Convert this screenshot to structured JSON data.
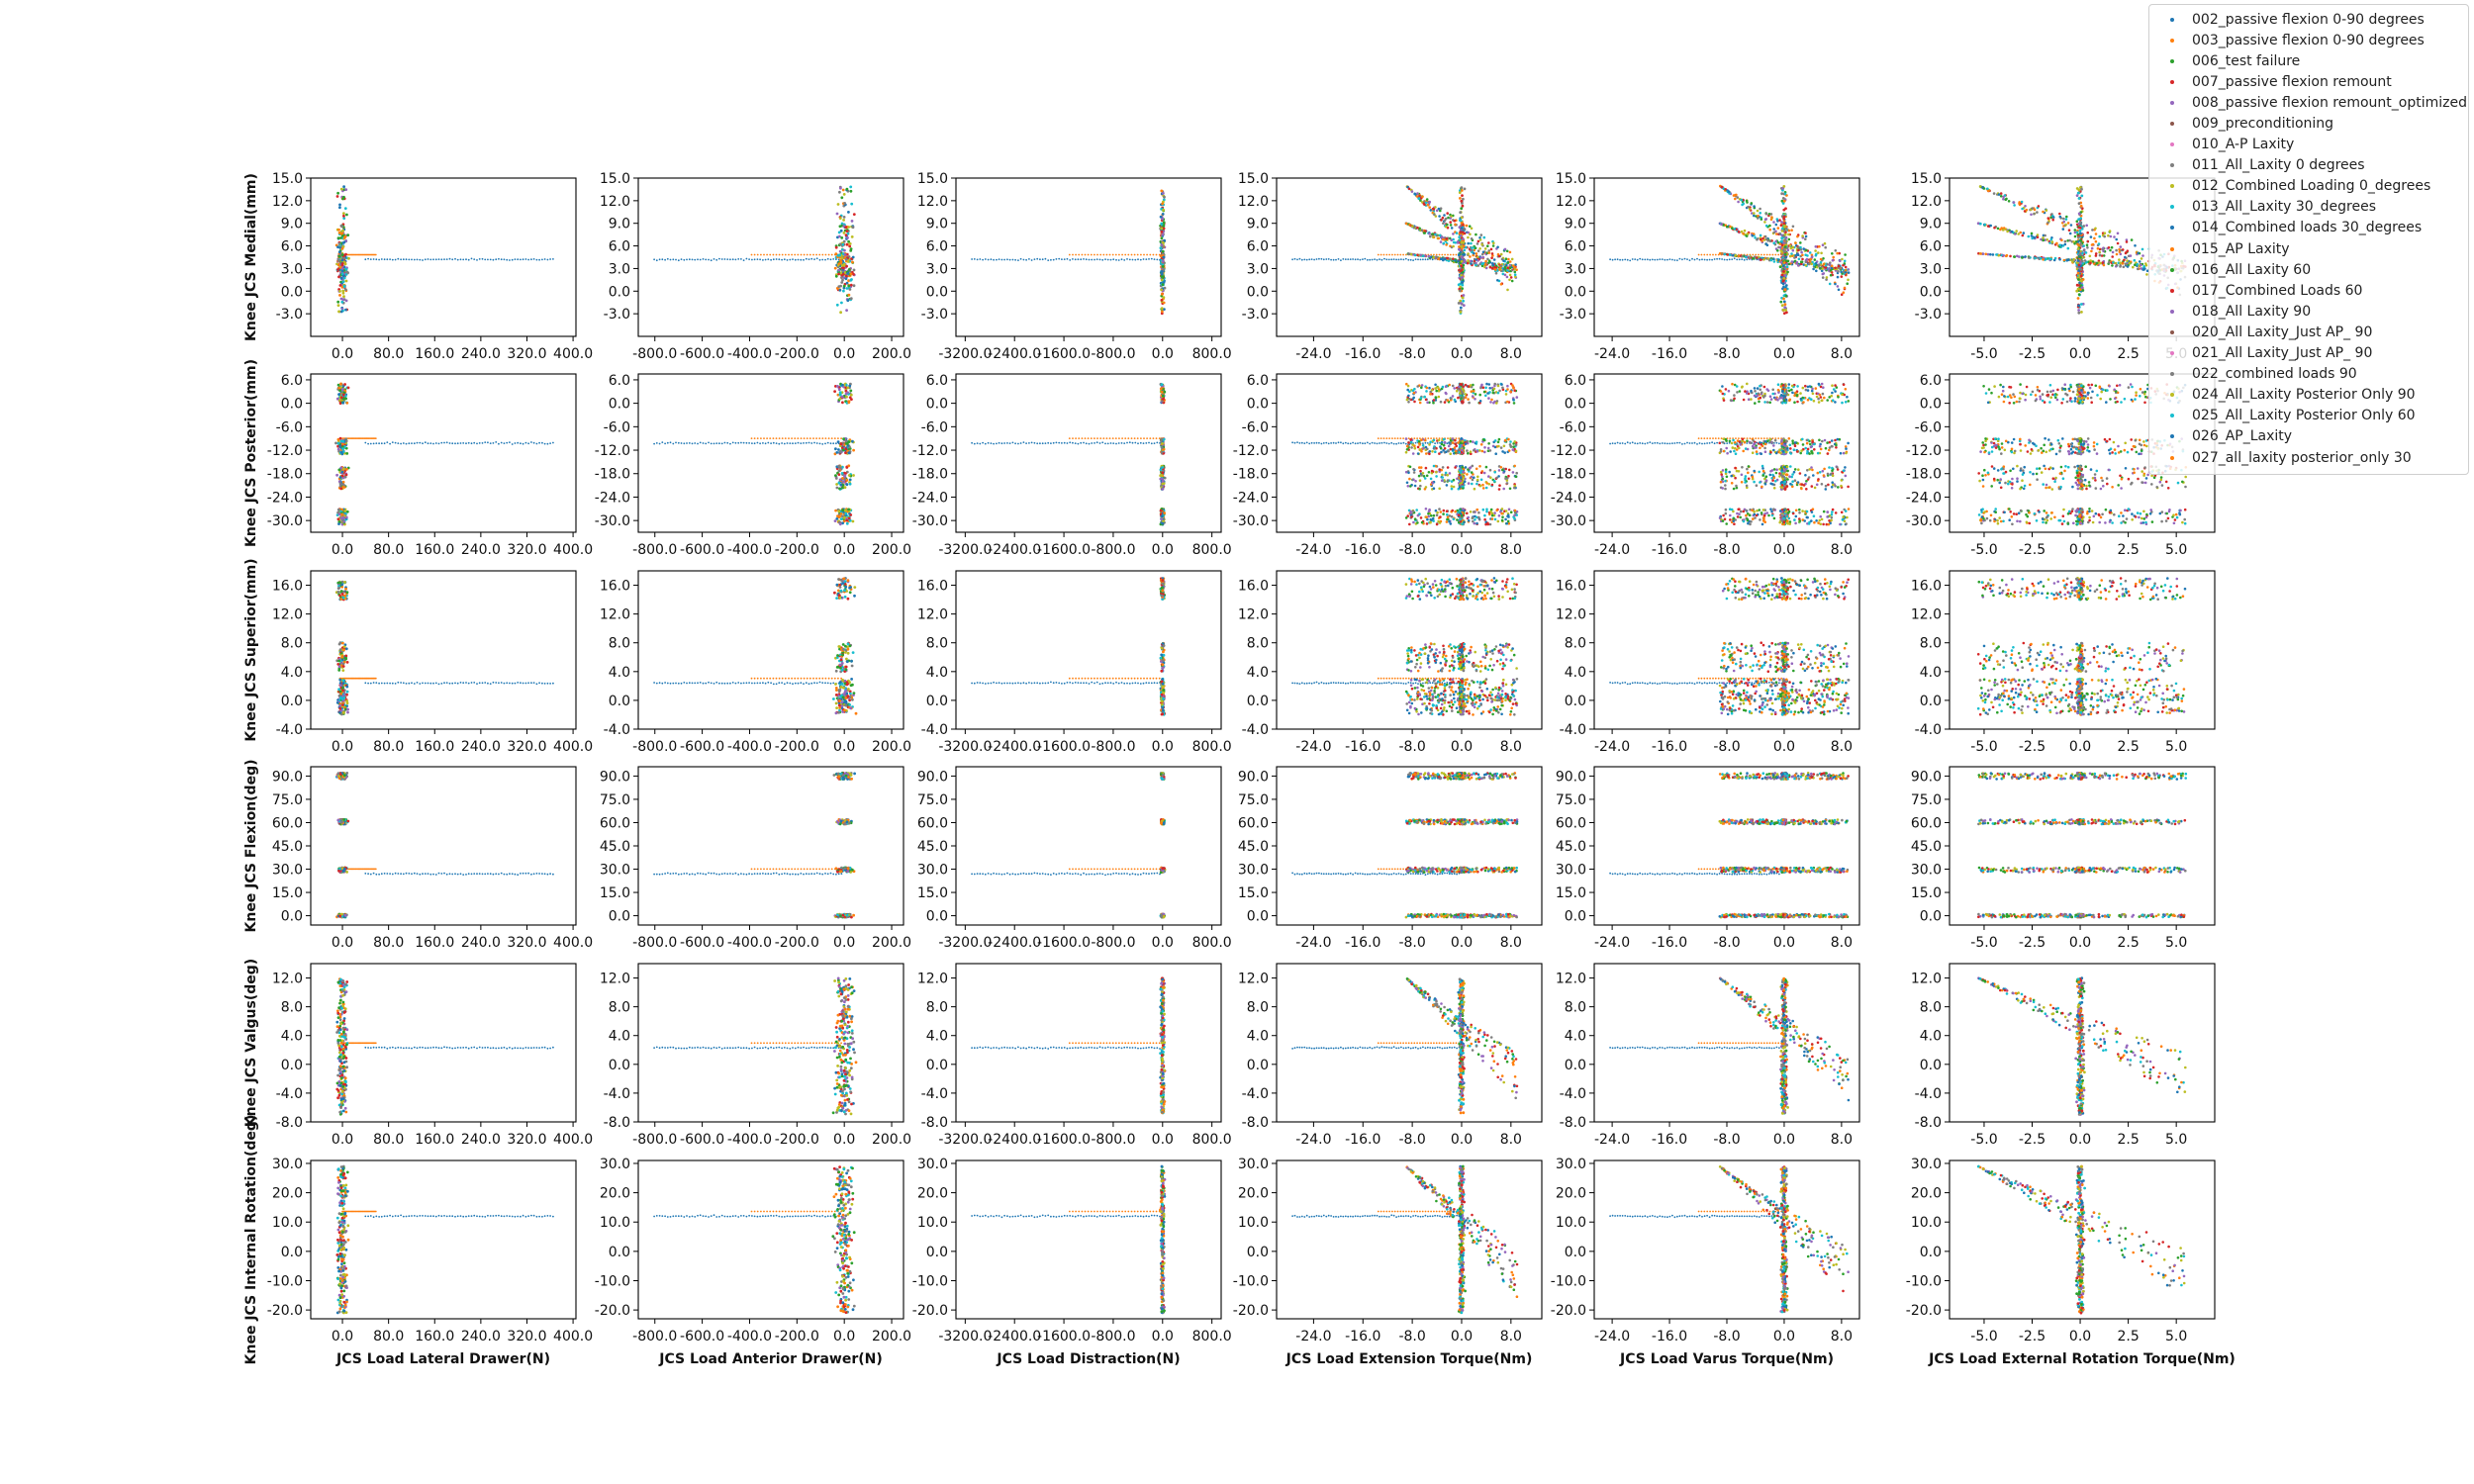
{
  "chart_data": {
    "type": "scatter",
    "rows": [
      {
        "ylabel": "Knee JCS Medial(mm)",
        "yticks": [
          "-3.0",
          "0.0",
          "3.0",
          "6.0",
          "9.0",
          "12.0",
          "15.0"
        ],
        "ylim": [
          -6.0,
          15.0
        ]
      },
      {
        "ylabel": "Knee JCS Posterior(mm)",
        "yticks": [
          "-30.0",
          "-24.0",
          "-18.0",
          "-12.0",
          "-6.0",
          "0.0",
          "6.0"
        ],
        "ylim": [
          -33.0,
          7.5
        ]
      },
      {
        "ylabel": "Knee JCS Superior(mm)",
        "yticks": [
          "-4.0",
          "0.0",
          "4.0",
          "8.0",
          "12.0",
          "16.0"
        ],
        "ylim": [
          -4.0,
          18.0
        ]
      },
      {
        "ylabel": "Knee JCS Flexion(deg)",
        "yticks": [
          "0.0",
          "15.0",
          "30.0",
          "45.0",
          "60.0",
          "75.0",
          "90.0"
        ],
        "ylim": [
          -6.0,
          96.0
        ]
      },
      {
        "ylabel": "Knee JCS Valgus(deg)",
        "yticks": [
          "-8.0",
          "-4.0",
          "0.0",
          "4.0",
          "8.0",
          "12.0"
        ],
        "ylim": [
          -8.0,
          14.0
        ]
      },
      {
        "ylabel": "Knee JCS Internal Rotation(deg)",
        "yticks": [
          "-20.0",
          "-10.0",
          "0.0",
          "10.0",
          "20.0",
          "30.0"
        ],
        "ylim": [
          -23.0,
          31.0
        ]
      }
    ],
    "columns": [
      {
        "xlabel": "JCS Load Lateral Drawer(N)",
        "xticks": [
          "0.0",
          "80.0",
          "160.0",
          "240.0",
          "320.0",
          "400.0"
        ],
        "xlim": [
          -55,
          405
        ]
      },
      {
        "xlabel": "JCS Load Anterior Drawer(N)",
        "xticks": [
          "-800.0",
          "-600.0",
          "-400.0",
          "-200.0",
          "0.0",
          "200.0"
        ],
        "xlim": [
          -870,
          250
        ]
      },
      {
        "xlabel": "JCS Load Distraction(N)",
        "xticks": [
          "-3200.0",
          "-2400.0",
          "-1600.0",
          "-800.0",
          "0.0",
          "800.0"
        ],
        "xlim": [
          -3350,
          950
        ]
      },
      {
        "xlabel": "JCS Load Extension Torque(Nm)",
        "xticks": [
          "-24.0",
          "-16.0",
          "-8.0",
          "0.0",
          "8.0"
        ],
        "xlim": [
          -30.0,
          13.0
        ]
      },
      {
        "xlabel": "JCS Load Varus Torque(Nm)",
        "xticks": [
          "-24.0",
          "-16.0",
          "-8.0",
          "0.0",
          "8.0"
        ],
        "xlim": [
          -26.5,
          10.5
        ]
      },
      {
        "xlabel": "JCS Load External Rotation Torque(Nm)",
        "xticks": [
          "-5.0",
          "-2.5",
          "0.0",
          "2.5",
          "5.0"
        ],
        "xlim": [
          -6.8,
          7.0
        ]
      }
    ],
    "series": [
      {
        "name": "002_passive flexion 0-90 degrees",
        "color": "#1f77b4"
      },
      {
        "name": "003_passive flexion 0-90 degrees",
        "color": "#ff7f0e"
      },
      {
        "name": "006_test failure",
        "color": "#2ca02c"
      },
      {
        "name": "007_passive flexion remount",
        "color": "#d62728"
      },
      {
        "name": "008_passive flexion remount_optimized",
        "color": "#9467bd"
      },
      {
        "name": "009_preconditioning",
        "color": "#8c564b"
      },
      {
        "name": "010_A-P Laxity",
        "color": "#e377c2"
      },
      {
        "name": "011_All_Laxity 0 degrees",
        "color": "#7f7f7f"
      },
      {
        "name": "012_Combined Loading 0_degrees",
        "color": "#bcbd22"
      },
      {
        "name": "013_All_Laxity 30_degrees",
        "color": "#17becf"
      },
      {
        "name": "014_Combined loads 30_degrees",
        "color": "#1f77b4"
      },
      {
        "name": "015_AP Laxity",
        "color": "#ff7f0e"
      },
      {
        "name": "016_All Laxity 60",
        "color": "#2ca02c"
      },
      {
        "name": "017_Combined Loads 60",
        "color": "#d62728"
      },
      {
        "name": "018_All Laxity 90",
        "color": "#9467bd"
      },
      {
        "name": "020_All Laxity_Just AP_ 90",
        "color": "#8c564b"
      },
      {
        "name": "021_All Laxity_Just AP_ 90",
        "color": "#e377c2"
      },
      {
        "name": "022_combined loads 90",
        "color": "#7f7f7f"
      },
      {
        "name": "024_All_Laxity Posterior Only 90",
        "color": "#bcbd22"
      },
      {
        "name": "025_All_Laxity Posterior Only 60",
        "color": "#17becf"
      },
      {
        "name": "026_AP_Laxity",
        "color": "#1f77b4"
      },
      {
        "name": "027_all_laxity posterior_only 30",
        "color": "#ff7f0e"
      }
    ],
    "flexion_levels": [
      0,
      30,
      60,
      90
    ],
    "grid": false,
    "legend": "top-right"
  }
}
